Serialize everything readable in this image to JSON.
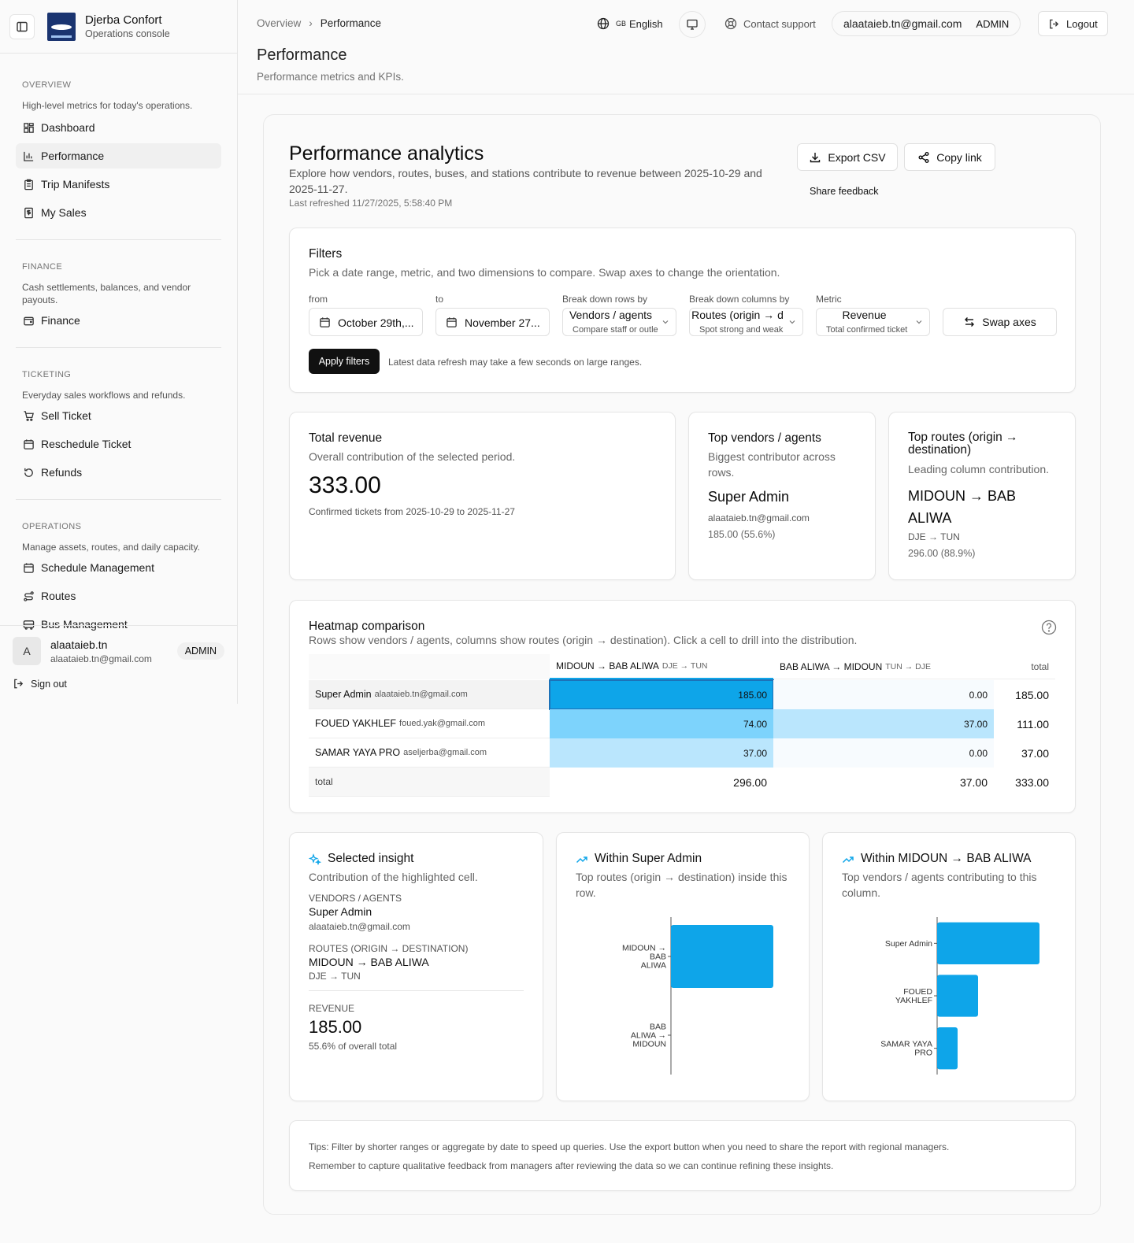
{
  "sidebar": {
    "brand": "Djerba Confort",
    "subtitle": "Operations console",
    "sections": [
      {
        "heading": "OVERVIEW",
        "desc": "High-level metrics for today's operations.",
        "items": [
          {
            "label": "Dashboard",
            "icon": "grid-icon"
          },
          {
            "label": "Performance",
            "icon": "bar-chart-icon",
            "active": true
          },
          {
            "label": "Trip Manifests",
            "icon": "clipboard-icon"
          },
          {
            "label": "My Sales",
            "icon": "receipt-icon"
          }
        ]
      },
      {
        "heading": "FINANCE",
        "desc": "Cash settlements, balances, and vendor payouts.",
        "items": [
          {
            "label": "Finance",
            "icon": "wallet-icon"
          }
        ]
      },
      {
        "heading": "TICKETING",
        "desc": "Everyday sales workflows and refunds.",
        "items": [
          {
            "label": "Sell Ticket",
            "icon": "cart-icon"
          },
          {
            "label": "Reschedule Ticket",
            "icon": "calendar-icon"
          },
          {
            "label": "Refunds",
            "icon": "undo-icon"
          }
        ]
      },
      {
        "heading": "OPERATIONS",
        "desc": "Manage assets, routes, and daily capacity.",
        "items": [
          {
            "label": "Schedule Management",
            "icon": "calendar-icon"
          },
          {
            "label": "Routes",
            "icon": "route-icon"
          },
          {
            "label": "Bus Management",
            "icon": "bus-icon"
          }
        ]
      }
    ],
    "user": {
      "initial": "A",
      "name": "alaataieb.tn",
      "email": "alaataieb.tn@gmail.com",
      "role": "ADMIN"
    },
    "signout": "Sign out"
  },
  "header": {
    "breadcrumb": [
      "Overview",
      "Performance"
    ],
    "title": "Performance",
    "subtitle": "Performance metrics and KPIs.",
    "lang_flag": "GB",
    "lang": "English",
    "support": "Contact support",
    "user_email": "alaataieb.tn@gmail.com",
    "user_role": "ADMIN",
    "logout": "Logout"
  },
  "analytics": {
    "title": "Performance analytics",
    "desc": "Explore how vendors, routes, buses, and stations contribute to revenue between 2025-10-29 and 2025-11-27.",
    "refreshed": "Last refreshed 11/27/2025, 5:58:40 PM",
    "export": "Export CSV",
    "copy": "Copy link",
    "feedback": "Share feedback"
  },
  "filters": {
    "title": "Filters",
    "desc": "Pick a date range, metric, and two dimensions to compare. Swap axes to change the orientation.",
    "from_label": "from",
    "from_value": "October 29th,...",
    "to_label": "to",
    "to_value": "November 27...",
    "rows_label": "Break down rows by",
    "rows_value": "Vendors / agents",
    "rows_hint": "Compare staff or outle",
    "cols_label": "Break down columns by",
    "cols_value": "Routes (origin → d",
    "cols_hint": "Spot strong and weak r",
    "metric_label": "Metric",
    "metric_value": "Revenue",
    "metric_hint": "Total confirmed ticket",
    "swap": "Swap axes",
    "apply": "Apply filters",
    "note": "Latest data refresh may take a few seconds on large ranges."
  },
  "kpis": {
    "total": {
      "title": "Total revenue",
      "desc": "Overall contribution of the selected period.",
      "value": "333.00",
      "note": "Confirmed tickets from 2025-10-29 to 2025-11-27"
    },
    "vendors": {
      "title": "Top vendors / agents",
      "desc": "Biggest contributor across rows.",
      "name": "Super Admin",
      "email": "alaataieb.tn@gmail.com",
      "value": "185.00 (55.6%)"
    },
    "routes": {
      "title": "Top routes (origin → destination)",
      "desc": "Leading column contribution.",
      "name": "MIDOUN → BAB ALIWA",
      "code": "DJE → TUN",
      "value": "296.00 (88.9%)"
    }
  },
  "heatmap": {
    "title": "Heatmap comparison",
    "desc": "Rows show vendors / agents, columns show routes (origin → destination). Click a cell to drill into the distribution.",
    "columns": [
      {
        "name": "MIDOUN → BAB ALIWA",
        "code": "DJE → TUN"
      },
      {
        "name": "BAB ALIWA → MIDOUN",
        "code": "TUN → DJE"
      }
    ],
    "total_label": "total",
    "rows": [
      {
        "name": "Super Admin",
        "email": "alaataieb.tn@gmail.com",
        "cells": [
          "185.00",
          "0.00"
        ],
        "total": "185.00"
      },
      {
        "name": "FOUED YAKHLEF",
        "email": "foued.yak@gmail.com",
        "cells": [
          "74.00",
          "37.00"
        ],
        "total": "111.00"
      },
      {
        "name": "SAMAR YAYA PRO",
        "email": "aseljerba@gmail.com",
        "cells": [
          "37.00",
          "0.00"
        ],
        "total": "37.00"
      }
    ],
    "footer": {
      "label": "total",
      "cells": [
        "296.00",
        "37.00"
      ],
      "total": "333.00"
    },
    "colors": {
      "high": "#0ea5e9",
      "mid": "#7dd3fc",
      "low": "#bae6fd"
    }
  },
  "insight": {
    "title": "Selected insight",
    "desc": "Contribution of the highlighted cell.",
    "row_dim": "VENDORS / AGENTS",
    "row_name": "Super Admin",
    "row_email": "alaataieb.tn@gmail.com",
    "col_dim": "ROUTES (ORIGIN → DESTINATION)",
    "col_name": "MIDOUN → BAB ALIWA",
    "col_code": "DJE → TUN",
    "metric": "REVENUE",
    "value": "185.00",
    "share": "55.6% of overall total"
  },
  "within_row": {
    "title": "Within Super Admin",
    "desc": "Top routes (origin → destination) inside this row."
  },
  "within_col": {
    "title": "Within MIDOUN → BAB ALIWA",
    "desc": "Top vendors / agents contributing to this column."
  },
  "chart_data": [
    {
      "type": "bar",
      "orientation": "horizontal",
      "categories": [
        "MIDOUN → BAB ALIWA",
        "BAB ALIWA → MIDOUN"
      ],
      "values": [
        185,
        0
      ],
      "color": "#0ea5e9"
    },
    {
      "type": "bar",
      "orientation": "horizontal",
      "categories": [
        "Super Admin",
        "FOUED YAKHLEF",
        "SAMAR YAYA PRO"
      ],
      "values": [
        185,
        74,
        37
      ],
      "color": "#0ea5e9"
    }
  ],
  "tips": [
    "Tips: Filter by shorter ranges or aggregate by date to speed up queries. Use the export button when you need to share the report with regional managers.",
    "Remember to capture qualitative feedback from managers after reviewing the data so we can continue refining these insights."
  ]
}
